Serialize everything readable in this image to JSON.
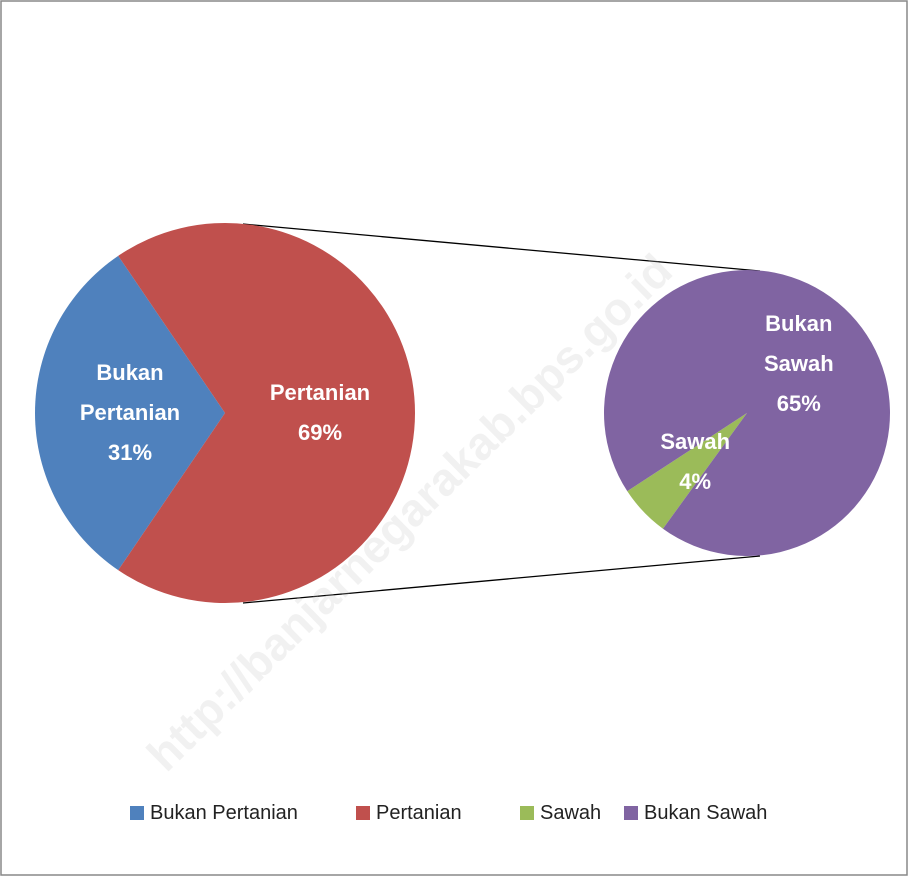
{
  "chart_data": [
    {
      "type": "pie",
      "categories": [
        "Bukan Pertanian",
        "Pertanian"
      ],
      "values": [
        31,
        69
      ],
      "value_labels": [
        "31%",
        "69%"
      ],
      "colors": [
        "#4f81bd",
        "#c0504d"
      ]
    },
    {
      "type": "pie",
      "categories": [
        "Sawah",
        "Bukan Sawah"
      ],
      "values": [
        4,
        65
      ],
      "value_labels": [
        "4%",
        "65%"
      ],
      "colors": [
        "#9bbb59",
        "#8064a2"
      ]
    }
  ],
  "watermark": "http://banjarnegarakab.bps.go.id"
}
